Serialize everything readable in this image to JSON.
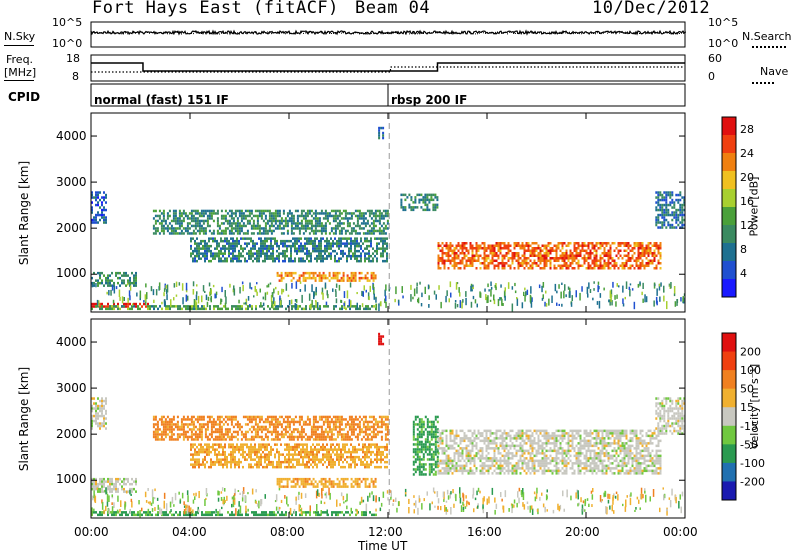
{
  "header": {
    "site": "Fort Hays East (fitACF)",
    "beam": "Beam 04",
    "date": "10/Dec/2012"
  },
  "top_panels": {
    "nsky_label": "N.Sky",
    "nsky_ticks": [
      "10^5",
      "10^0"
    ],
    "nsearch_label": "N.Search",
    "nsearch_ticks": [
      "10^5",
      "10^0"
    ],
    "freq_label_1": "Freq.",
    "freq_label_2": "[MHz]",
    "freq_ticks": [
      "18",
      "8"
    ],
    "nave_label": "Nave",
    "nave_ticks": [
      "60",
      "0"
    ],
    "cpid_label": "CPID",
    "cpid_segments": [
      {
        "name": "normal (fast) 151 IF",
        "start_hour": 0,
        "end_hour": 12
      },
      {
        "name": "rbsp 200 IF",
        "start_hour": 12,
        "end_hour": 24
      }
    ]
  },
  "chart_data": [
    {
      "type": "heatmap",
      "title": "Power",
      "ylabel": "Slant Range [km]",
      "ylim": [
        180,
        4500
      ],
      "yticks": [
        "1000",
        "2000",
        "3000",
        "4000"
      ],
      "xticks": [
        "00:00",
        "04:00",
        "08:00",
        "12:00",
        "16:00",
        "20:00",
        "00:00"
      ],
      "colorbar_label": "Power [dB]",
      "colorbar_ticks": [
        "4",
        "8",
        "12",
        "16",
        "20",
        "24",
        "28"
      ],
      "colorbar_colors": [
        "#1a1aff",
        "#2050d0",
        "#1e7090",
        "#3a8a60",
        "#4aa03a",
        "#a8d030",
        "#f0c020",
        "#f08010",
        "#f04010",
        "#e01010"
      ],
      "features": [
        {
          "start_hour": 0.0,
          "end_hour": 2.5,
          "range_km": [
            300,
            380
          ],
          "level_db": 28
        },
        {
          "start_hour": 0.0,
          "end_hour": 11.5,
          "range_km": [
            250,
            330
          ],
          "level_db": 12
        },
        {
          "start_hour": 0.0,
          "end_hour": 0.6,
          "range_km": [
            2100,
            2800
          ],
          "level_db": 6
        },
        {
          "start_hour": 0.0,
          "end_hour": 1.8,
          "range_km": [
            750,
            1050
          ],
          "level_db": 10
        },
        {
          "start_hour": 2.5,
          "end_hour": 12.0,
          "range_km": [
            1900,
            2400
          ],
          "level_db": 10
        },
        {
          "start_hour": 4.0,
          "end_hour": 12.0,
          "range_km": [
            1300,
            1800
          ],
          "level_db": 9
        },
        {
          "start_hour": 7.5,
          "end_hour": 11.5,
          "range_km": [
            850,
            1050
          ],
          "level_db": 22
        },
        {
          "start_hour": 12.5,
          "end_hour": 14.0,
          "range_km": [
            2400,
            2750
          ],
          "level_db": 10
        },
        {
          "start_hour": 14.0,
          "end_hour": 23.0,
          "range_km": [
            1150,
            1700
          ],
          "level_db": 24
        },
        {
          "start_hour": 22.8,
          "end_hour": 24.0,
          "range_km": [
            2000,
            2800
          ],
          "level_db": 8
        },
        {
          "start_hour": 11.6,
          "end_hour": 11.8,
          "range_km": [
            3950,
            4200
          ],
          "level_db": 8
        }
      ]
    },
    {
      "type": "heatmap",
      "title": "Velocity",
      "ylabel": "Slant Range [km]",
      "xlabel": "Time UT",
      "ylim": [
        180,
        4500
      ],
      "yticks": [
        "1000",
        "2000",
        "3000",
        "4000"
      ],
      "xticks": [
        "00:00",
        "04:00",
        "08:00",
        "12:00",
        "16:00",
        "20:00",
        "00:00"
      ],
      "colorbar_label": "Velocity [m s⁻¹]",
      "colorbar_ticks": [
        "200",
        "100",
        "50",
        "15",
        "-15",
        "-50",
        "-100",
        "-200"
      ],
      "colorbar_colors": [
        "#1a1ab0",
        "#2070b0",
        "#2a9a50",
        "#70c840",
        "#c8c8c0",
        "#f0b030",
        "#f08020",
        "#f04010",
        "#e01010"
      ],
      "features": [
        {
          "start_hour": 0.0,
          "end_hour": 11.5,
          "range_km": [
            250,
            330
          ],
          "velocity": 60
        },
        {
          "start_hour": 0.0,
          "end_hour": 1.8,
          "range_km": [
            750,
            1050
          ],
          "velocity": 0
        },
        {
          "start_hour": 0.0,
          "end_hour": 0.6,
          "range_km": [
            2100,
            2800
          ],
          "velocity": 0
        },
        {
          "start_hour": 2.5,
          "end_hour": 12.0,
          "range_km": [
            1900,
            2400
          ],
          "velocity": -60
        },
        {
          "start_hour": 4.0,
          "end_hour": 12.0,
          "range_km": [
            1300,
            1800
          ],
          "velocity": -40
        },
        {
          "start_hour": 7.5,
          "end_hour": 11.5,
          "range_km": [
            850,
            1050
          ],
          "velocity": -40
        },
        {
          "start_hour": 13.0,
          "end_hour": 14.0,
          "range_km": [
            1100,
            2400
          ],
          "velocity": 60
        },
        {
          "start_hour": 14.0,
          "end_hour": 23.0,
          "range_km": [
            1150,
            2100
          ],
          "velocity": 0
        },
        {
          "start_hour": 22.8,
          "end_hour": 24.0,
          "range_km": [
            2000,
            2800
          ],
          "velocity": 0
        },
        {
          "start_hour": 11.6,
          "end_hour": 11.8,
          "range_km": [
            3950,
            4200
          ],
          "velocity": -220
        }
      ]
    }
  ]
}
